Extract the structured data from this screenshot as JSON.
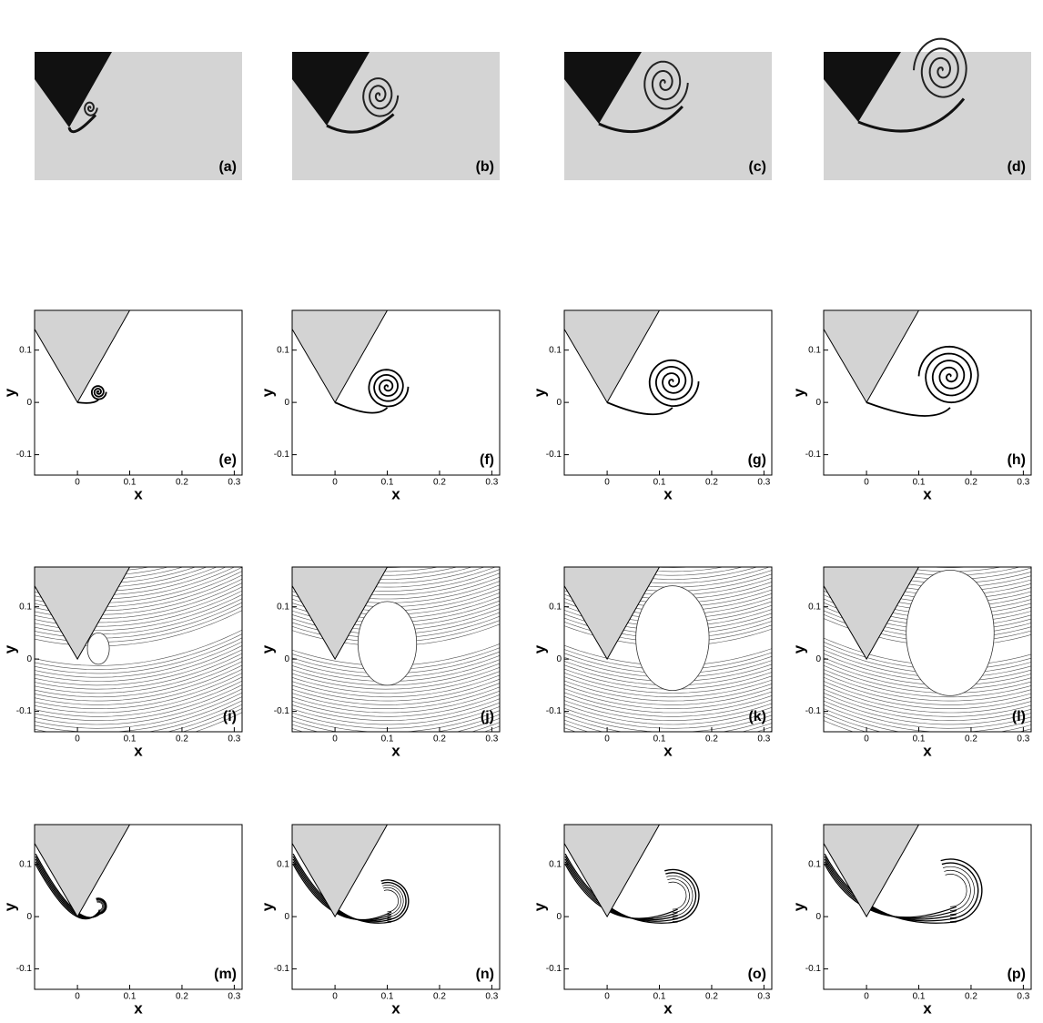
{
  "panels": [
    {
      "label": "(a)"
    },
    {
      "label": "(b)"
    },
    {
      "label": "(c)"
    },
    {
      "label": "(d)"
    },
    {
      "label": "(e)"
    },
    {
      "label": "(f)"
    },
    {
      "label": "(g)"
    },
    {
      "label": "(h)"
    },
    {
      "label": "(i)"
    },
    {
      "label": "(j)"
    },
    {
      "label": "(k)"
    },
    {
      "label": "(l)"
    },
    {
      "label": "(m)"
    },
    {
      "label": "(n)"
    },
    {
      "label": "(o)"
    },
    {
      "label": "(p)"
    }
  ],
  "axes": {
    "xlabel": "x",
    "ylabel": "y",
    "xlim": [
      -0.082,
      0.315
    ],
    "ylim": [
      -0.139,
      0.176
    ],
    "xticks": [
      0,
      0.1,
      0.2,
      0.3
    ],
    "yticks": [
      -0.1,
      0,
      0.1
    ]
  }
}
